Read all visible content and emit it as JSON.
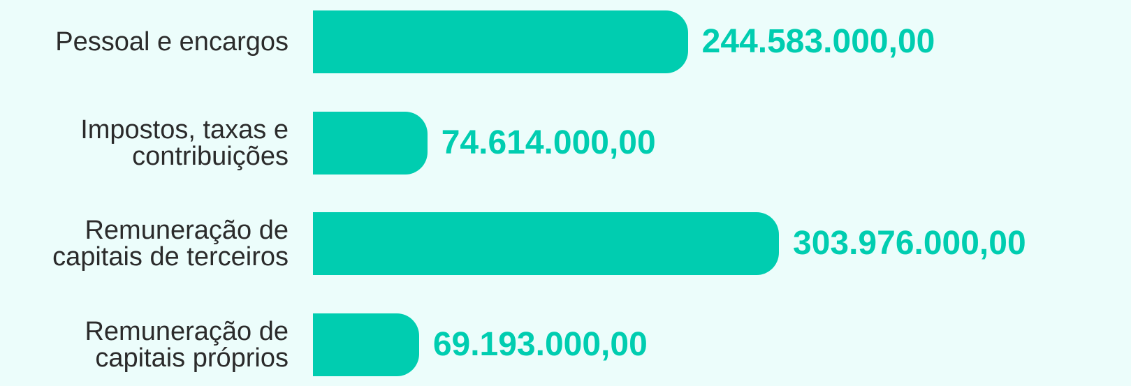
{
  "chart_data": {
    "type": "bar",
    "orientation": "horizontal",
    "categories": [
      "Pessoal e encargos",
      "Impostos, taxas e contribuições",
      "Remuneração de capitais de terceiros",
      "Remuneração de capitais próprios"
    ],
    "values": [
      244583000,
      74614000,
      303976000,
      69193000
    ],
    "value_labels": [
      "244.583.000,00",
      "74.614.000,00",
      "303.976.000,00",
      "69.193.000,00"
    ],
    "color": "#00cdb0"
  }
}
